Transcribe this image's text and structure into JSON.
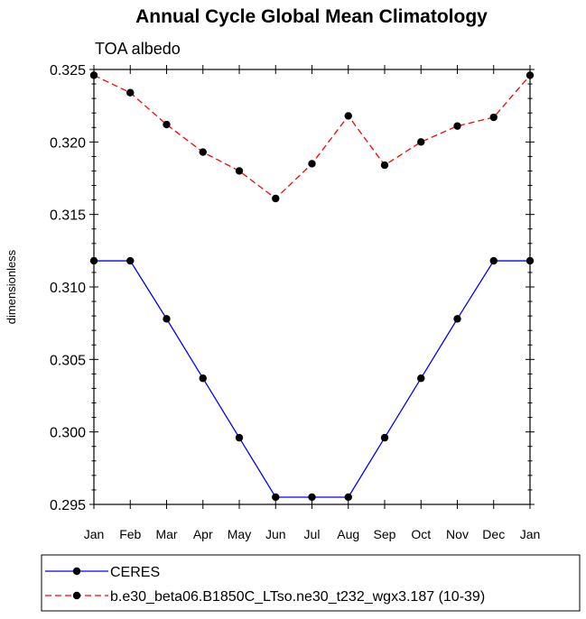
{
  "chart_data": {
    "type": "line",
    "title": "Annual Cycle Global Mean Climatology",
    "subtitle": "TOA albedo",
    "xlabel": "",
    "ylabel": "dimensionless",
    "categories": [
      "Jan",
      "Feb",
      "Mar",
      "Apr",
      "May",
      "Jun",
      "Jul",
      "Aug",
      "Sep",
      "Oct",
      "Nov",
      "Dec",
      "Jan"
    ],
    "ylim": [
      0.295,
      0.325
    ],
    "yticks": [
      "0.295",
      "0.300",
      "0.305",
      "0.310",
      "0.315",
      "0.320",
      "0.325"
    ],
    "series": [
      {
        "name": "CERES",
        "color": "#0000ff",
        "dash": "solid",
        "values": [
          0.3118,
          0.3118,
          0.3078,
          0.3037,
          0.2996,
          0.2955,
          0.2955,
          0.2955,
          0.2996,
          0.3037,
          0.3078,
          0.3118,
          0.3118
        ]
      },
      {
        "name": "b.e30_beta06.B1850C_LTso.ne30_t232_wgx3.187 (10-39)",
        "color": "#ff0000",
        "dash": "dashed",
        "values": [
          0.3246,
          0.3234,
          0.3212,
          0.3193,
          0.318,
          0.3161,
          0.3185,
          0.3218,
          0.3184,
          0.32,
          0.3211,
          0.3217,
          0.3246
        ]
      }
    ],
    "grid": false,
    "legend_position": "bottom"
  }
}
